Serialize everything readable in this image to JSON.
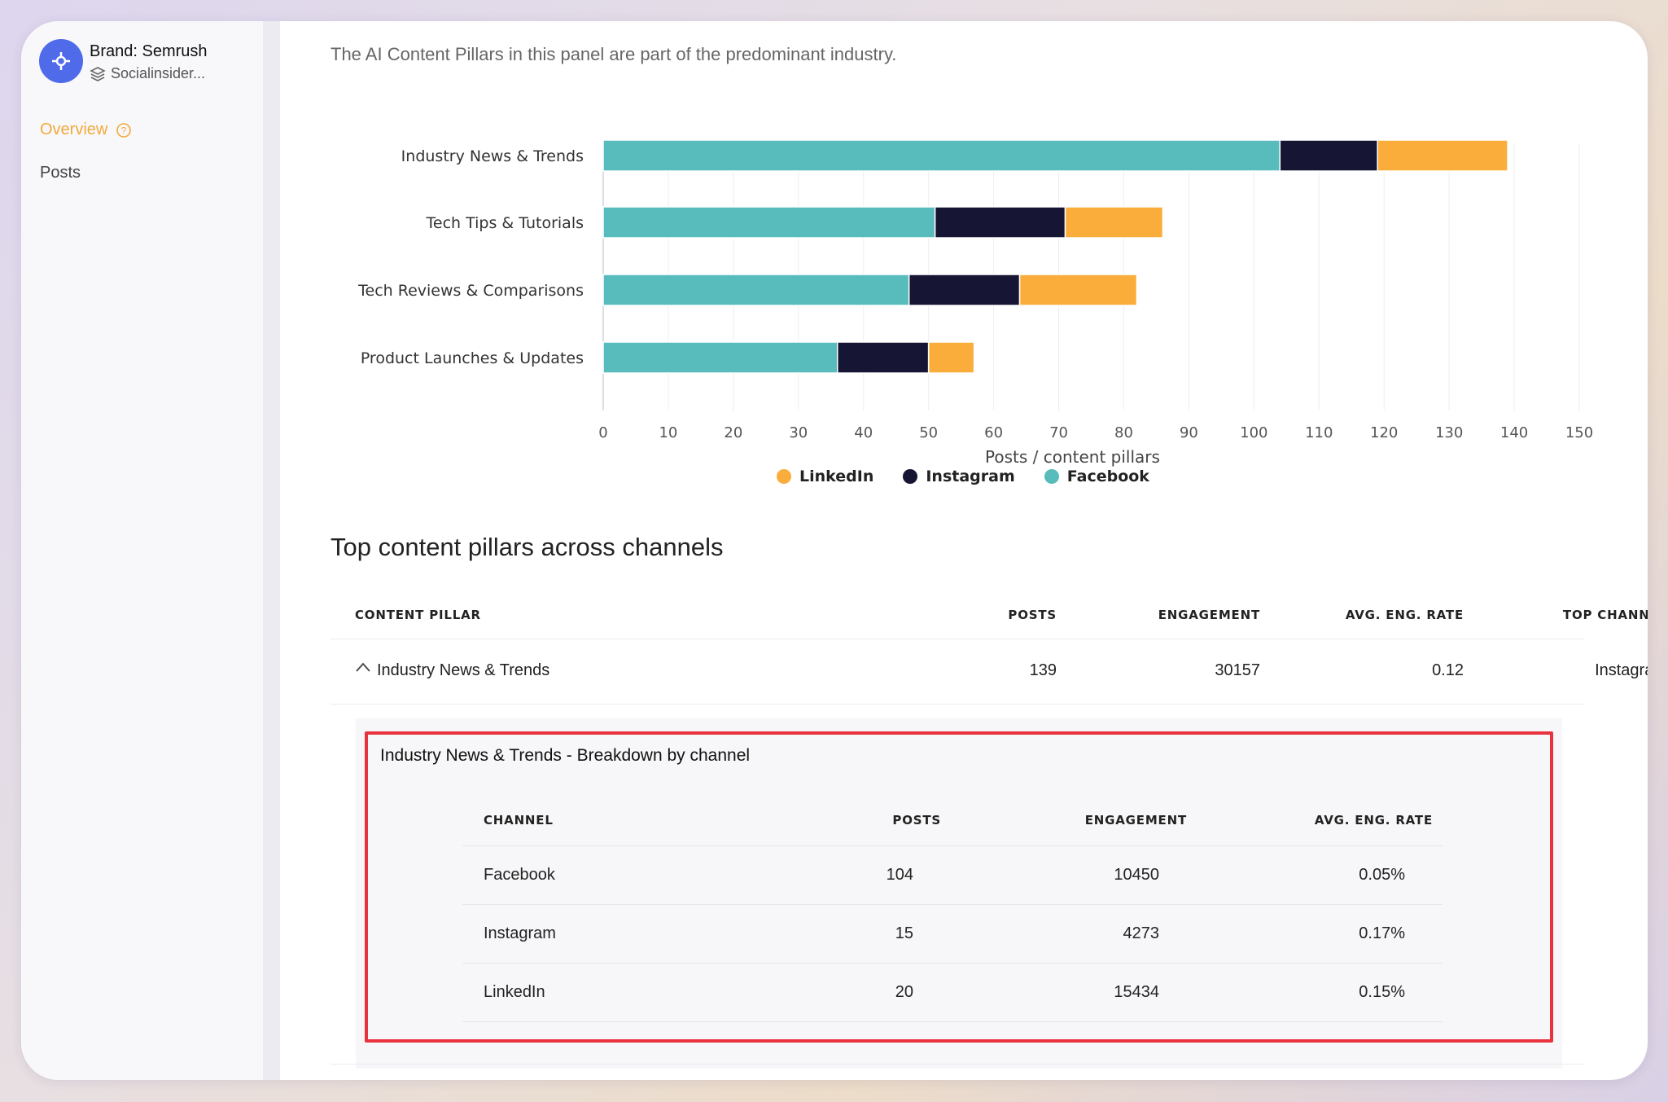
{
  "sidebar": {
    "brand_name": "Brand: Semrush",
    "brand_sub": "Socialinsider...",
    "nav": {
      "overview": "Overview",
      "posts": "Posts"
    }
  },
  "intro_text": "The AI Content Pillars in this panel are part of the predominant industry.",
  "chart_data": {
    "type": "bar",
    "orientation": "horizontal",
    "stacked": true,
    "categories": [
      "Industry News & Trends",
      "Tech Tips & Tutorials",
      "Tech Reviews & Comparisons",
      "Product Launches & Updates"
    ],
    "series": [
      {
        "name": "Facebook",
        "color": "#59bcbc",
        "values": [
          104,
          51,
          47,
          36
        ]
      },
      {
        "name": "Instagram",
        "color": "#161533",
        "values": [
          15,
          20,
          17,
          14
        ]
      },
      {
        "name": "LinkedIn",
        "color": "#fbad3c",
        "values": [
          20,
          15,
          18,
          7
        ]
      }
    ],
    "xlabel": "Posts / content pillars",
    "xlim": [
      0,
      150
    ],
    "xticks": [
      0,
      10,
      20,
      30,
      40,
      50,
      60,
      70,
      80,
      90,
      100,
      110,
      120,
      130,
      140,
      150
    ],
    "grid": true,
    "legend_order": [
      "LinkedIn",
      "Instagram",
      "Facebook"
    ],
    "legend_position": "bottom"
  },
  "legend": {
    "linkedin": "LinkedIn",
    "instagram": "Instagram",
    "facebook": "Facebook"
  },
  "colors": {
    "accent": "#f2a93b",
    "brand": "#4f6bea",
    "highlight": "#e8333f"
  },
  "table": {
    "title": "Top content pillars across channels",
    "headers": {
      "pillar": "CONTENT PILLAR",
      "posts": "POSTS",
      "engagement": "ENGAGEMENT",
      "rate": "AVG. ENG. RATE",
      "channel": "TOP CHANNEL"
    },
    "rows": [
      {
        "pillar": "Industry News & Trends",
        "posts": "139",
        "engagement": "30157",
        "rate": "0.12",
        "channel": "Instagram",
        "expanded": true
      }
    ]
  },
  "breakdown": {
    "title": "Industry News & Trends - Breakdown by channel",
    "headers": {
      "channel": "CHANNEL",
      "posts": "POSTS",
      "engagement": "ENGAGEMENT",
      "rate": "AVG. ENG. RATE"
    },
    "rows": [
      {
        "channel": "Facebook",
        "posts": "104",
        "engagement": "10450",
        "rate": "0.05%"
      },
      {
        "channel": "Instagram",
        "posts": "15",
        "engagement": "4273",
        "rate": "0.17%"
      },
      {
        "channel": "LinkedIn",
        "posts": "20",
        "engagement": "15434",
        "rate": "0.15%"
      }
    ]
  }
}
